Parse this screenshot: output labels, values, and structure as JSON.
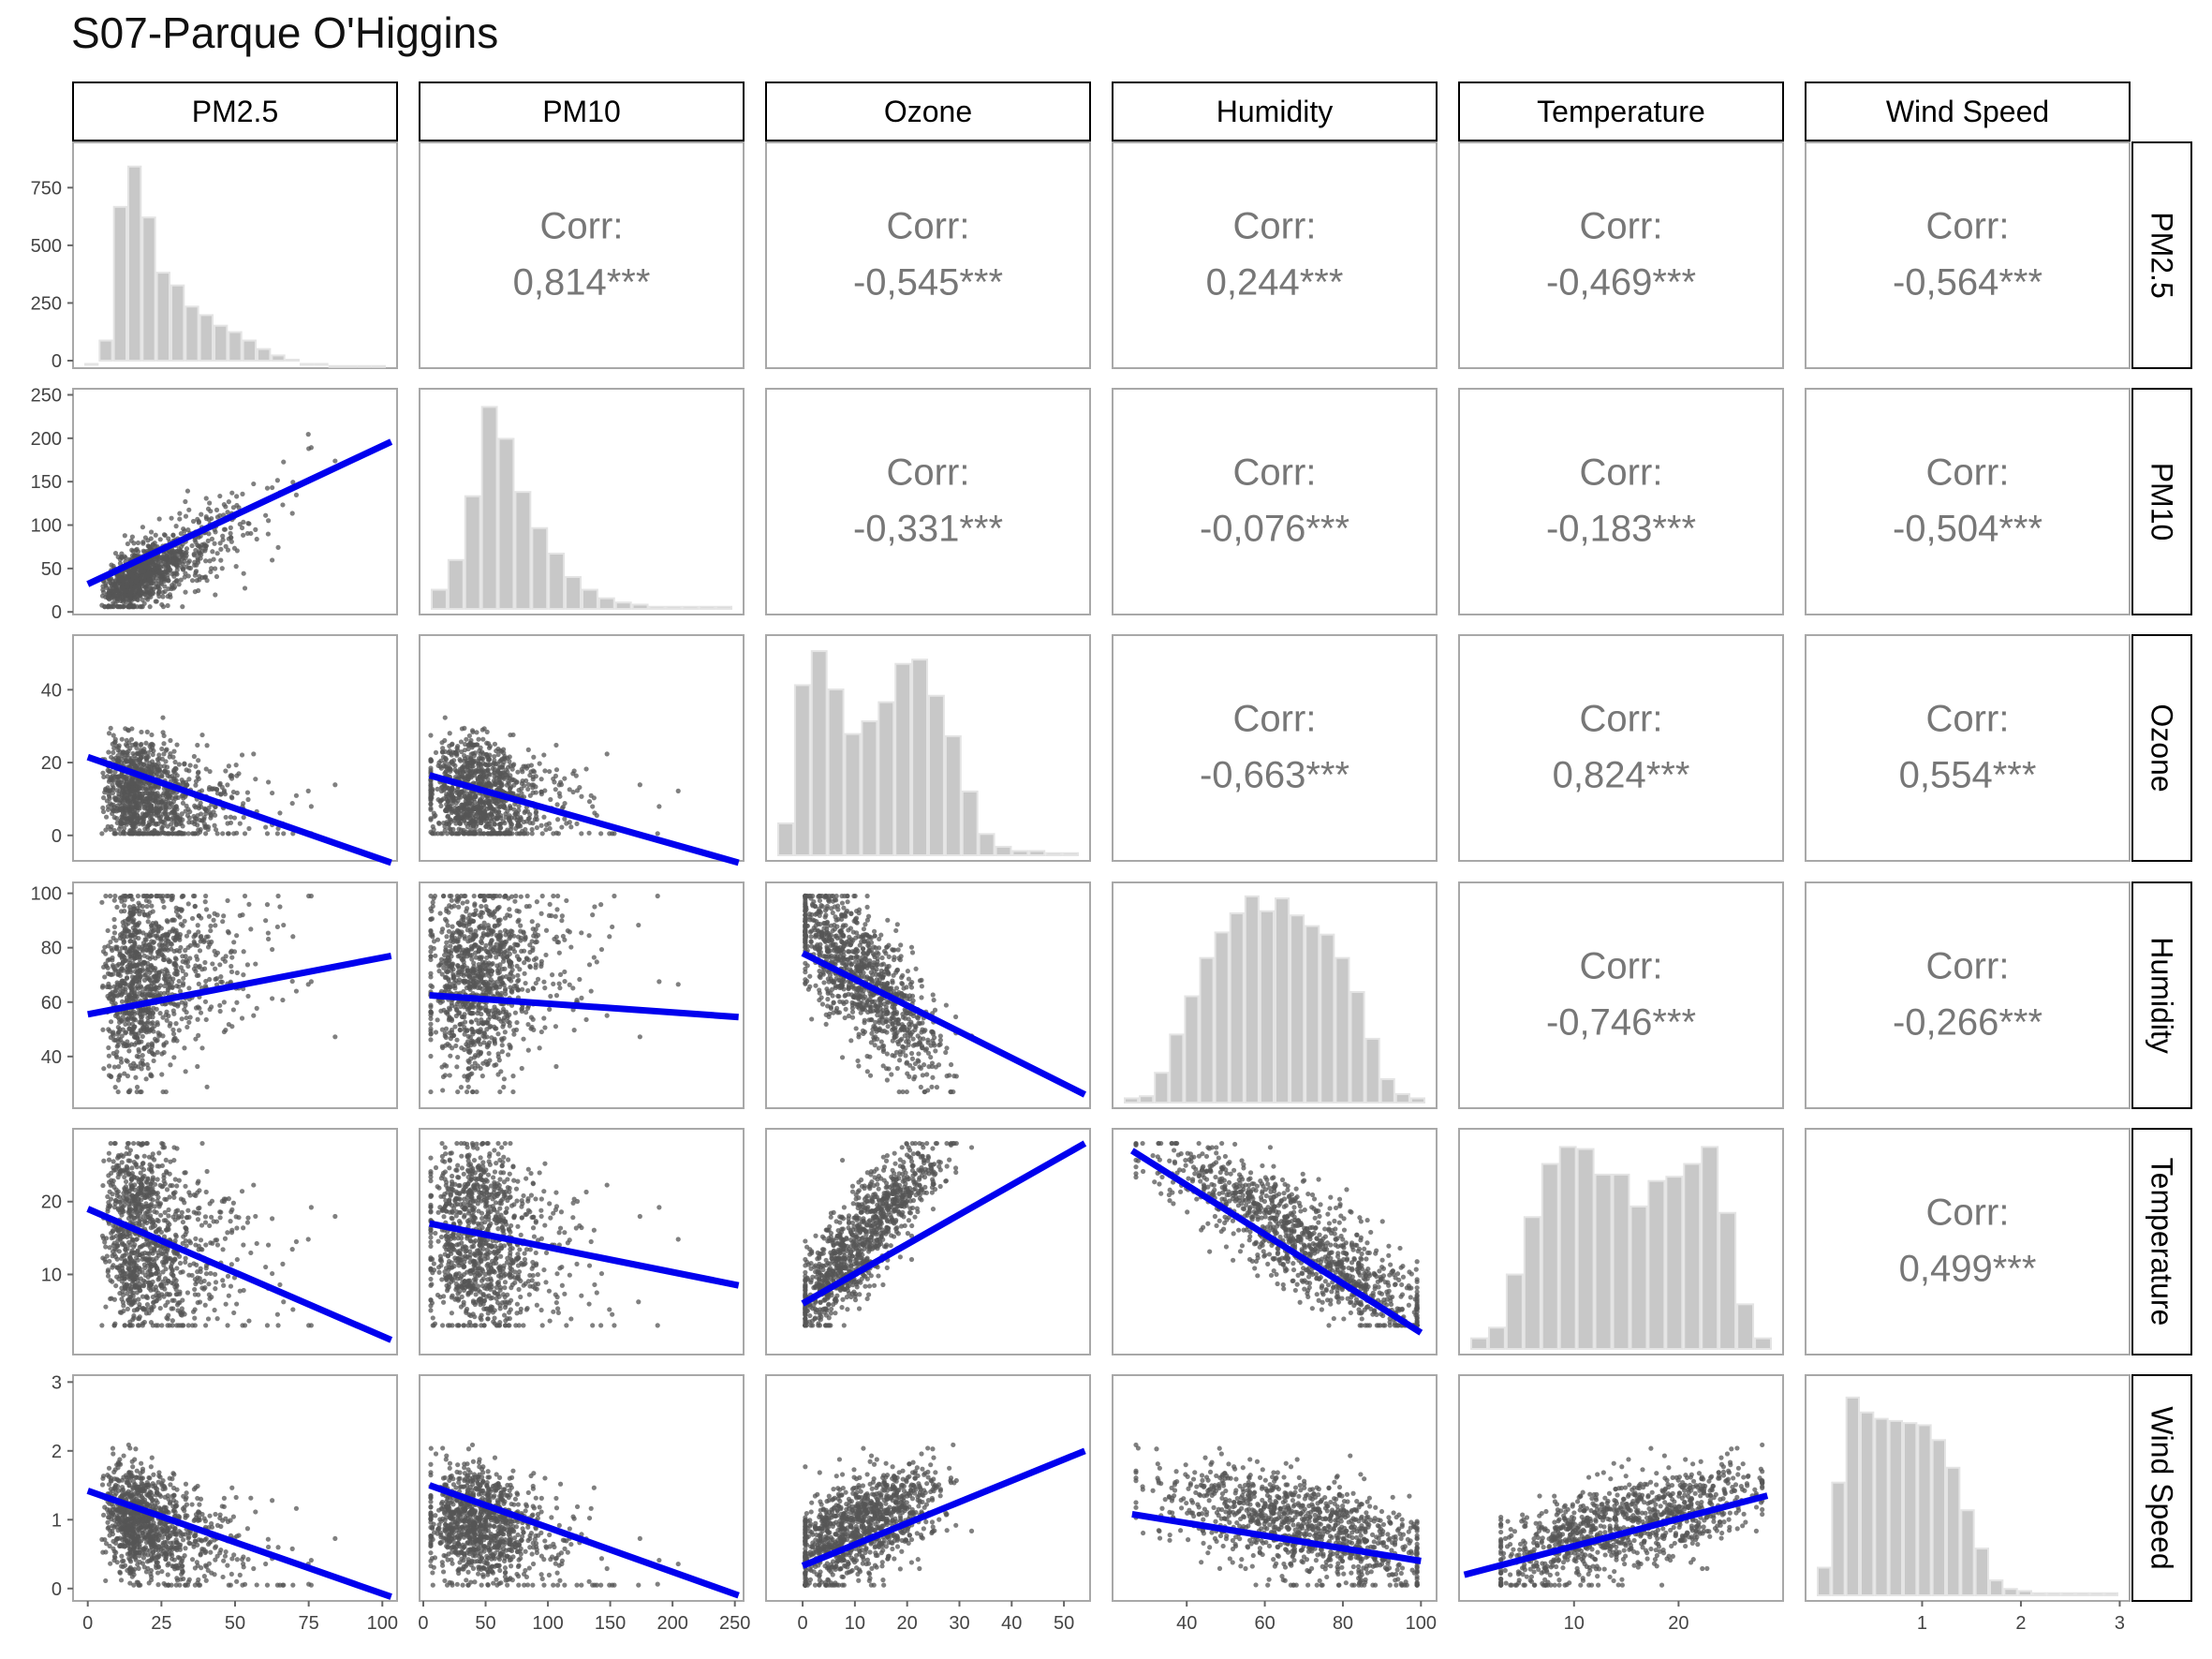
{
  "title": "S07-Parque O'Higgins",
  "chart_data": {
    "type": "scatter",
    "title": "S07-Parque O'Higgins",
    "variables": [
      "PM2.5",
      "PM10",
      "Ozone",
      "Humidity",
      "Temperature",
      "Wind Speed"
    ],
    "ranges": {
      "PM2.5": [
        -5,
        105
      ],
      "PM10": [
        -3,
        257
      ],
      "Ozone": [
        -7,
        55
      ],
      "Humidity": [
        21,
        104
      ],
      "Temperature": [
        -1,
        30
      ],
      "Wind Speed": [
        -0.18,
        3.1
      ]
    },
    "x_ticks": {
      "PM2.5": [
        "0",
        "25",
        "50",
        "75",
        "100"
      ],
      "PM10": [
        "0",
        "50",
        "100",
        "150",
        "200",
        "250"
      ],
      "Ozone": [
        "0",
        "10",
        "20",
        "30",
        "40",
        "50"
      ],
      "Humidity": [
        "40",
        "60",
        "80",
        "100"
      ],
      "Temperature": [
        "10",
        "20"
      ],
      "Wind Speed": [
        "1",
        "2",
        "3"
      ]
    },
    "y_ticks": {
      "PM2.5": [
        "0",
        "250",
        "500",
        "750"
      ],
      "PM10": [
        "0",
        "50",
        "100",
        "150",
        "200",
        "250"
      ],
      "Ozone": [
        "0",
        "20",
        "40"
      ],
      "Humidity": [
        "40",
        "60",
        "80",
        "100"
      ],
      "Temperature": [
        "10",
        "20"
      ],
      "Wind Speed": [
        "0",
        "1",
        "2",
        "3"
      ]
    },
    "pm25_hist_ylim": [
      0,
      920
    ],
    "correlation_label": "Corr:",
    "correlations": [
      {
        "row": "PM2.5",
        "col": "PM10",
        "value": "0,814***"
      },
      {
        "row": "PM2.5",
        "col": "Ozone",
        "value": "-0,545***"
      },
      {
        "row": "PM2.5",
        "col": "Humidity",
        "value": "0,244***"
      },
      {
        "row": "PM2.5",
        "col": "Temperature",
        "value": "-0,469***"
      },
      {
        "row": "PM2.5",
        "col": "Wind Speed",
        "value": "-0,564***"
      },
      {
        "row": "PM10",
        "col": "Ozone",
        "value": "-0,331***"
      },
      {
        "row": "PM10",
        "col": "Humidity",
        "value": "-0,076***"
      },
      {
        "row": "PM10",
        "col": "Temperature",
        "value": "-0,183***"
      },
      {
        "row": "PM10",
        "col": "Wind Speed",
        "value": "-0,504***"
      },
      {
        "row": "Ozone",
        "col": "Humidity",
        "value": "-0,663***"
      },
      {
        "row": "Ozone",
        "col": "Temperature",
        "value": "0,824***"
      },
      {
        "row": "Ozone",
        "col": "Wind Speed",
        "value": "0,554***"
      },
      {
        "row": "Humidity",
        "col": "Temperature",
        "value": "-0,746***"
      },
      {
        "row": "Humidity",
        "col": "Wind Speed",
        "value": "-0,266***"
      },
      {
        "row": "Temperature",
        "col": "Wind Speed",
        "value": "0,499***"
      }
    ],
    "histograms": {
      "PM2.5": [
        0.02,
        0.13,
        0.76,
        0.95,
        0.71,
        0.45,
        0.39,
        0.29,
        0.25,
        0.2,
        0.17,
        0.13,
        0.09,
        0.06,
        0.04,
        0.02,
        0.02,
        0.01,
        0.01,
        0.01,
        0.01
      ],
      "PM10": [
        0.09,
        0.23,
        0.53,
        0.95,
        0.8,
        0.55,
        0.38,
        0.26,
        0.15,
        0.09,
        0.05,
        0.03,
        0.02,
        0.01,
        0.01,
        0.01,
        0.01,
        0.01
      ],
      "Ozone": [
        0.15,
        0.8,
        0.96,
        0.78,
        0.57,
        0.63,
        0.72,
        0.9,
        0.92,
        0.75,
        0.56,
        0.3,
        0.1,
        0.04,
        0.02,
        0.02,
        0.01,
        0.01
      ],
      "Humidity": [
        0.02,
        0.03,
        0.14,
        0.32,
        0.5,
        0.68,
        0.8,
        0.89,
        0.97,
        0.9,
        0.96,
        0.88,
        0.83,
        0.79,
        0.68,
        0.52,
        0.3,
        0.11,
        0.04,
        0.02
      ],
      "Temperature": [
        0.05,
        0.1,
        0.35,
        0.62,
        0.87,
        0.95,
        0.94,
        0.82,
        0.82,
        0.67,
        0.79,
        0.81,
        0.87,
        0.95,
        0.64,
        0.21,
        0.05
      ],
      "Wind Speed": [
        0.13,
        0.53,
        0.93,
        0.86,
        0.83,
        0.82,
        0.81,
        0.8,
        0.73,
        0.6,
        0.4,
        0.22,
        0.07,
        0.03,
        0.02,
        0.01,
        0.01,
        0.01,
        0.01,
        0.01,
        0.01
      ]
    },
    "fit_lines": [
      {
        "x": "PM2.5",
        "y": "PM10",
        "x_range": [
          0,
          103
        ],
        "y_range": [
          32,
          196
        ]
      },
      {
        "x": "PM2.5",
        "y": "Ozone",
        "x_range": [
          0,
          103
        ],
        "y_range": [
          21.5,
          -7.5
        ]
      },
      {
        "x": "PM10",
        "y": "Ozone",
        "x_range": [
          5,
          253
        ],
        "y_range": [
          16.5,
          -7.5
        ]
      },
      {
        "x": "PM2.5",
        "y": "Humidity",
        "x_range": [
          0,
          103
        ],
        "y_range": [
          55.5,
          77
        ]
      },
      {
        "x": "PM10",
        "y": "Humidity",
        "x_range": [
          5,
          253
        ],
        "y_range": [
          62.5,
          54.5
        ]
      },
      {
        "x": "Ozone",
        "y": "Humidity",
        "x_range": [
          0,
          54
        ],
        "y_range": [
          78,
          26
        ]
      },
      {
        "x": "PM2.5",
        "y": "Temperature",
        "x_range": [
          0,
          103
        ],
        "y_range": [
          19,
          1
        ]
      },
      {
        "x": "PM10",
        "y": "Temperature",
        "x_range": [
          5,
          253
        ],
        "y_range": [
          17,
          8.5
        ]
      },
      {
        "x": "Ozone",
        "y": "Temperature",
        "x_range": [
          0,
          54
        ],
        "y_range": [
          6,
          28
        ]
      },
      {
        "x": "Humidity",
        "y": "Temperature",
        "x_range": [
          26,
          100
        ],
        "y_range": [
          27,
          2
        ]
      },
      {
        "x": "PM2.5",
        "y": "Wind Speed",
        "x_range": [
          0,
          103
        ],
        "y_range": [
          1.42,
          -0.12
        ]
      },
      {
        "x": "PM10",
        "y": "Wind Speed",
        "x_range": [
          5,
          253
        ],
        "y_range": [
          1.5,
          -0.1
        ]
      },
      {
        "x": "Ozone",
        "y": "Wind Speed",
        "x_range": [
          0,
          54
        ],
        "y_range": [
          0.33,
          2.0
        ]
      },
      {
        "x": "Humidity",
        "y": "Wind Speed",
        "x_range": [
          26,
          100
        ],
        "y_range": [
          1.08,
          0.4
        ]
      },
      {
        "x": "Temperature",
        "y": "Wind Speed",
        "x_range": [
          -0.5,
          28.5
        ],
        "y_range": [
          0.2,
          1.35
        ]
      }
    ],
    "colors": {
      "points": "#555555",
      "fit_line": "#0000ee",
      "histogram_fill": "#c8c8c8",
      "panel_border": "#a8a8a8",
      "strip_border": "#000000",
      "corr_text": "#777777"
    }
  }
}
